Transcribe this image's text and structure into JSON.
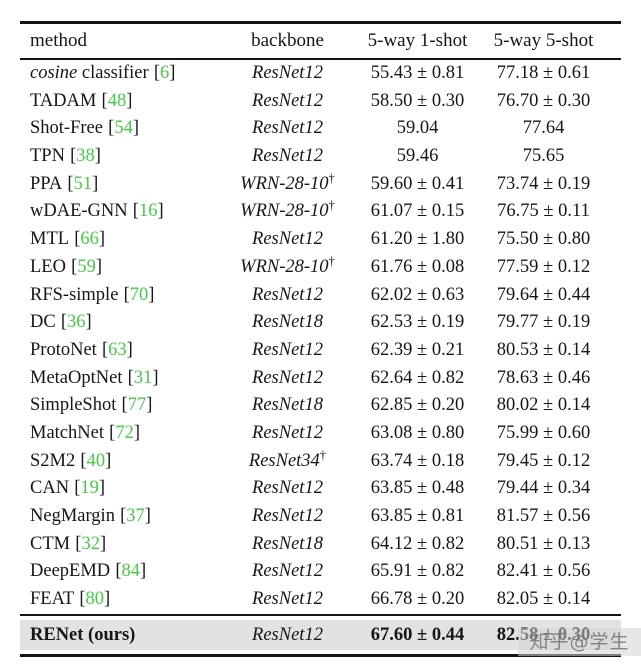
{
  "table": {
    "colors": {
      "citation": "#45cb45",
      "text": "#161616",
      "rule": "#141414",
      "highlight_bg": "#e2e2e2"
    },
    "cite_brackets": {
      "open": "[",
      "close": "]"
    },
    "headers": {
      "method": "method",
      "backbone": "backbone",
      "one_shot": "5-way 1-shot",
      "five_shot": "5-way 5-shot"
    },
    "rows": [
      {
        "name_italic": "cosine",
        "name": " classifier",
        "cite": "6",
        "backbone": "ResNet12",
        "dagger": "",
        "one_shot": "55.43 ± 0.81",
        "five_shot": "77.18 ± 0.61"
      },
      {
        "name_italic": "",
        "name": "TADAM",
        "cite": "48",
        "backbone": "ResNet12",
        "dagger": "",
        "one_shot": "58.50 ± 0.30",
        "five_shot": "76.70 ± 0.30"
      },
      {
        "name_italic": "",
        "name": "Shot-Free",
        "cite": "54",
        "backbone": "ResNet12",
        "dagger": "",
        "one_shot": "59.04",
        "five_shot": "77.64"
      },
      {
        "name_italic": "",
        "name": "TPN",
        "cite": "38",
        "backbone": "ResNet12",
        "dagger": "",
        "one_shot": "59.46",
        "five_shot": "75.65"
      },
      {
        "name_italic": "",
        "name": "PPA",
        "cite": "51",
        "backbone": "WRN-28-10",
        "dagger": "†",
        "one_shot": "59.60 ± 0.41",
        "five_shot": "73.74 ± 0.19"
      },
      {
        "name_italic": "",
        "name": "wDAE-GNN",
        "cite": "16",
        "backbone": "WRN-28-10",
        "dagger": "†",
        "one_shot": "61.07 ± 0.15",
        "five_shot": "76.75 ± 0.11"
      },
      {
        "name_italic": "",
        "name": "MTL",
        "cite": "66",
        "backbone": "ResNet12",
        "dagger": "",
        "one_shot": "61.20 ± 1.80",
        "five_shot": "75.50 ± 0.80"
      },
      {
        "name_italic": "",
        "name": "LEO",
        "cite": "59",
        "backbone": "WRN-28-10",
        "dagger": "†",
        "one_shot": "61.76 ± 0.08",
        "five_shot": "77.59 ± 0.12"
      },
      {
        "name_italic": "",
        "name": "RFS-simple",
        "cite": "70",
        "backbone": "ResNet12",
        "dagger": "",
        "one_shot": "62.02 ± 0.63",
        "five_shot": "79.64 ± 0.44"
      },
      {
        "name_italic": "",
        "name": "DC",
        "cite": "36",
        "backbone": "ResNet18",
        "dagger": "",
        "one_shot": "62.53 ± 0.19",
        "five_shot": "79.77 ± 0.19"
      },
      {
        "name_italic": "",
        "name": "ProtoNet",
        "cite": "63",
        "backbone": "ResNet12",
        "dagger": "",
        "one_shot": "62.39 ± 0.21",
        "five_shot": "80.53 ± 0.14"
      },
      {
        "name_italic": "",
        "name": "MetaOptNet",
        "cite": "31",
        "backbone": "ResNet12",
        "dagger": "",
        "one_shot": "62.64 ± 0.82",
        "five_shot": "78.63 ± 0.46"
      },
      {
        "name_italic": "",
        "name": "SimpleShot",
        "cite": "77",
        "backbone": "ResNet18",
        "dagger": "",
        "one_shot": "62.85 ± 0.20",
        "five_shot": "80.02 ± 0.14"
      },
      {
        "name_italic": "",
        "name": "MatchNet",
        "cite": "72",
        "backbone": "ResNet12",
        "dagger": "",
        "one_shot": "63.08 ± 0.80",
        "five_shot": "75.99 ± 0.60"
      },
      {
        "name_italic": "",
        "name": "S2M2",
        "cite": "40",
        "backbone": "ResNet34",
        "dagger": "†",
        "one_shot": "63.74 ± 0.18",
        "five_shot": "79.45 ± 0.12"
      },
      {
        "name_italic": "",
        "name": "CAN",
        "cite": "19",
        "backbone": "ResNet12",
        "dagger": "",
        "one_shot": "63.85 ± 0.48",
        "five_shot": "79.44 ± 0.34"
      },
      {
        "name_italic": "",
        "name": "NegMargin",
        "cite": "37",
        "backbone": "ResNet12",
        "dagger": "",
        "one_shot": "63.85 ± 0.81",
        "five_shot": "81.57 ± 0.56"
      },
      {
        "name_italic": "",
        "name": "CTM",
        "cite": "32",
        "backbone": "ResNet18",
        "dagger": "",
        "one_shot": "64.12 ± 0.82",
        "five_shot": "80.51 ± 0.13"
      },
      {
        "name_italic": "",
        "name": "DeepEMD",
        "cite": "84",
        "backbone": "ResNet12",
        "dagger": "",
        "one_shot": "65.91 ± 0.82",
        "five_shot": "82.41 ± 0.56"
      },
      {
        "name_italic": "",
        "name": "FEAT",
        "cite": "80",
        "backbone": "ResNet12",
        "dagger": "",
        "one_shot": "66.78 ± 0.20",
        "five_shot": "82.05 ± 0.14"
      }
    ],
    "final_row": {
      "method": "RENet (ours)",
      "backbone": "ResNet12",
      "one_shot": "67.60 ± 0.44",
      "five_shot": "82.58 ± 0.30"
    }
  },
  "watermark": {
    "text": "知乎@学生"
  }
}
